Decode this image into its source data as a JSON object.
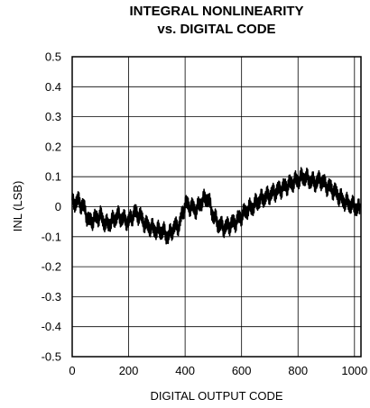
{
  "chart_data": {
    "type": "line",
    "title_line1": "INTEGRAL NONLINEARITY",
    "title_line2": "vs. DIGITAL CODE",
    "xlabel": "DIGITAL OUTPUT CODE",
    "ylabel": "INL (LSB)",
    "xlim": [
      0,
      1023
    ],
    "ylim": [
      -0.5,
      0.5
    ],
    "x_ticks": [
      0,
      200,
      400,
      600,
      800,
      1000
    ],
    "x_tick_labels": [
      "0",
      "200",
      "400",
      "600",
      "800",
      "1000"
    ],
    "y_ticks": [
      0.5,
      0.4,
      0.3,
      0.2,
      0.1,
      0,
      -0.1,
      -0.2,
      -0.3,
      -0.4,
      -0.5
    ],
    "y_tick_labels": [
      "0.5",
      "0.4",
      "0.3",
      "0.2",
      "0.1",
      "0",
      "-0.1",
      "-0.2",
      "-0.3",
      "-0.4",
      "-0.5"
    ],
    "grid": true,
    "line_color": "#000000",
    "series": [
      {
        "x": [
          0,
          20,
          40,
          60,
          80,
          100,
          120,
          140,
          160,
          180,
          200,
          220,
          240,
          260,
          280,
          300,
          320,
          340,
          360,
          380,
          400,
          420,
          440,
          460,
          480,
          500,
          520,
          540,
          560,
          580,
          600,
          620,
          640,
          660,
          680,
          700,
          720,
          740,
          760,
          780,
          800,
          820,
          840,
          860,
          880,
          900,
          920,
          940,
          960,
          980,
          1000,
          1020
        ],
        "y": [
          0.01,
          0.02,
          0.0,
          -0.05,
          -0.04,
          -0.03,
          -0.06,
          -0.05,
          -0.03,
          -0.04,
          -0.05,
          -0.02,
          -0.03,
          -0.06,
          -0.07,
          -0.08,
          -0.08,
          -0.1,
          -0.07,
          -0.06,
          0.01,
          0.0,
          -0.01,
          0.02,
          0.03,
          -0.03,
          -0.06,
          -0.07,
          -0.06,
          -0.05,
          -0.03,
          -0.01,
          0.0,
          0.02,
          0.03,
          0.04,
          0.05,
          0.06,
          0.07,
          0.08,
          0.09,
          0.1,
          0.09,
          0.08,
          0.09,
          0.07,
          0.06,
          0.04,
          0.02,
          0.01,
          0.0,
          -0.01
        ],
        "noise_amplitude": 0.035
      }
    ]
  }
}
